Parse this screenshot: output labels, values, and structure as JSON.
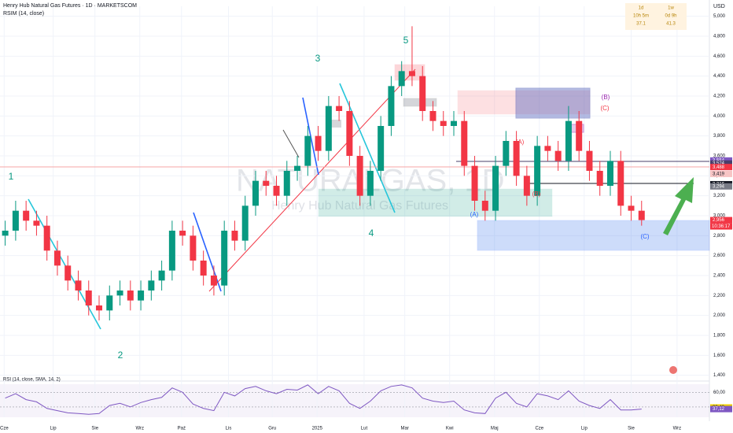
{
  "chart_data": {
    "type": "candlestick",
    "title": "Henry Hub Natural Gas Futures · 1D · MARKETSCOM",
    "indicator_label": "RSIM (14, close)",
    "watermark": "NATURALGAS, 1D",
    "watermark_subtitle": "Henry Hub Natural Gas Futures",
    "currency": "USD",
    "up_color": "#089981",
    "down_color": "#f23645",
    "grid": true,
    "x": [
      0.5,
      1.5,
      2.5,
      3.5,
      4.5,
      5.5,
      6.5,
      7.5,
      8.5,
      9.5,
      10.5,
      11.5,
      12.5,
      13.5,
      14.5,
      15.5,
      16.5,
      17.5,
      18.5,
      19.5,
      20.5,
      21.5,
      22.5,
      23.5,
      24.5,
      25.5,
      26.5,
      27.5,
      28.5,
      29.5,
      30.5,
      31.5,
      32.5,
      33.5,
      34.5,
      35.5,
      36.5,
      37.5,
      38.5,
      39.5,
      40.5,
      41.5,
      42.5,
      43.5,
      44.5,
      45.5,
      46.5,
      47.5,
      48.5,
      49.5,
      50.5,
      51.5,
      52.5,
      53.5,
      54.5,
      55.5,
      56.5,
      57.5,
      58.5,
      59.5,
      60.5,
      61.5
    ],
    "open": [
      2800,
      2850,
      3050,
      2950,
      2900,
      2650,
      2500,
      2350,
      2250,
      2100,
      2050,
      2200,
      2250,
      2150,
      2250,
      2350,
      2450,
      2850,
      2800,
      2550,
      2400,
      2300,
      2850,
      2750,
      3100,
      3350,
      3300,
      3200,
      3450,
      3500,
      3800,
      3650,
      4100,
      4050,
      3600,
      3200,
      3450,
      3900,
      4300,
      4450,
      4400,
      4050,
      3950,
      3900,
      3950,
      3500,
      3150,
      3050,
      3500,
      3750,
      3400,
      3200,
      3700,
      3650,
      3550,
      3950,
      3650,
      3450,
      3300,
      3550,
      3100,
      3050
    ],
    "high": [
      2950,
      3150,
      3150,
      3050,
      3000,
      2750,
      2600,
      2450,
      2350,
      2200,
      2300,
      2350,
      2350,
      2350,
      2450,
      2550,
      2950,
      2950,
      2900,
      2650,
      2500,
      2950,
      2950,
      3200,
      3450,
      3450,
      3400,
      3550,
      3600,
      3900,
      3900,
      4200,
      4200,
      4150,
      3700,
      3550,
      4000,
      4400,
      4550,
      4900,
      4500,
      4150,
      4050,
      4050,
      4050,
      3600,
      3250,
      3600,
      3850,
      3850,
      3500,
      3800,
      3800,
      3750,
      4100,
      4050,
      3750,
      3550,
      3650,
      3650,
      3200,
      3150
    ],
    "low": [
      2700,
      2750,
      2850,
      2800,
      2550,
      2400,
      2250,
      2150,
      2000,
      1950,
      1950,
      2100,
      2050,
      2050,
      2150,
      2250,
      2350,
      2700,
      2450,
      2300,
      2200,
      2200,
      2650,
      2650,
      3000,
      3200,
      3100,
      3100,
      3350,
      3400,
      3550,
      3550,
      3950,
      3500,
      3100,
      3100,
      3350,
      3800,
      4200,
      4300,
      3950,
      3850,
      3800,
      3800,
      3400,
      3050,
      2950,
      2950,
      3400,
      3300,
      3100,
      3100,
      3550,
      3450,
      3450,
      3550,
      3350,
      3200,
      3200,
      3000,
      2950,
      2900
    ],
    "close": [
      2850,
      3050,
      2950,
      2900,
      2650,
      2500,
      2350,
      2250,
      2100,
      2050,
      2200,
      2250,
      2150,
      2250,
      2350,
      2450,
      2850,
      2800,
      2550,
      2400,
      2300,
      2850,
      2750,
      3100,
      3350,
      3300,
      3200,
      3450,
      3500,
      3800,
      3650,
      4100,
      4050,
      3600,
      3200,
      3450,
      3900,
      4300,
      4450,
      4400,
      4050,
      3950,
      3900,
      3950,
      3500,
      3150,
      3050,
      3500,
      3750,
      3400,
      3200,
      3700,
      3650,
      3550,
      3950,
      3650,
      3450,
      3300,
      3550,
      3100,
      3050,
      2956
    ],
    "xlim": [
      0,
      68
    ],
    "xticks": [
      {
        "value": 0.4,
        "label": "Cze"
      },
      {
        "value": 5.1,
        "label": "Lip"
      },
      {
        "value": 9.1,
        "label": "Sie"
      },
      {
        "value": 13.4,
        "label": "Wrz"
      },
      {
        "value": 17.4,
        "label": "Paź"
      },
      {
        "value": 21.9,
        "label": "Lis"
      },
      {
        "value": 26.1,
        "label": "Gru"
      },
      {
        "value": 30.4,
        "label": "2025"
      },
      {
        "value": 34.9,
        "label": "Lut"
      },
      {
        "value": 38.8,
        "label": "Mar"
      },
      {
        "value": 43.1,
        "label": "Kwi"
      },
      {
        "value": 47.4,
        "label": "Maj"
      },
      {
        "value": 51.7,
        "label": "Cze"
      },
      {
        "value": 56.0,
        "label": "Lip"
      },
      {
        "value": 60.5,
        "label": "Sie"
      },
      {
        "value": 64.9,
        "label": "Wrz"
      }
    ],
    "ylim": [
      1350,
      5100
    ],
    "yticks": [
      {
        "value": 1400,
        "label": "1,400"
      },
      {
        "value": 1600,
        "label": "1,600"
      },
      {
        "value": 1800,
        "label": "1,800"
      },
      {
        "value": 2000,
        "label": "2,000"
      },
      {
        "value": 2200,
        "label": "2,200"
      },
      {
        "value": 2400,
        "label": "2,400"
      },
      {
        "value": 2600,
        "label": "2,600"
      },
      {
        "value": 2800,
        "label": "2,800"
      },
      {
        "value": 3000,
        "label": "3,000"
      },
      {
        "value": 3200,
        "label": "3,200"
      },
      {
        "value": 3400,
        "label": "3,400"
      },
      {
        "value": 3600,
        "label": "3,600"
      },
      {
        "value": 3800,
        "label": "3,800"
      },
      {
        "value": 4000,
        "label": "4,000"
      },
      {
        "value": 4200,
        "label": "4,200"
      },
      {
        "value": 4400,
        "label": "4,400"
      },
      {
        "value": 4600,
        "label": "4,600"
      },
      {
        "value": 4800,
        "label": "4,800"
      },
      {
        "value": 5000,
        "label": "5,000"
      }
    ],
    "price_labels": [
      {
        "value": 3554,
        "label": "3,554",
        "color": "#7e57c2"
      },
      {
        "value": 3524,
        "label": "3,524",
        "color": "#4a3f6b"
      },
      {
        "value": 3488,
        "label": "3,488",
        "color": "#f23645"
      },
      {
        "value": 3419,
        "label": "3,419",
        "color": "#f7c5c5"
      },
      {
        "value": 3316,
        "label": "3,316",
        "color": "#131722"
      },
      {
        "value": 3294,
        "label": "3,294",
        "color": "#787b86"
      },
      {
        "value": 2956,
        "label": "2,956",
        "color": "#f23645"
      }
    ],
    "countdown": "10:36:17",
    "annotations": [
      {
        "text": "1",
        "color": "#089981"
      },
      {
        "text": "2",
        "color": "#089981"
      },
      {
        "text": "3",
        "color": "#089981"
      },
      {
        "text": "4",
        "color": "#089981"
      },
      {
        "text": "5",
        "color": "#089981"
      },
      {
        "text": "(A)",
        "color": "#2962ff"
      },
      {
        "text": "(B)",
        "color": "#f23645"
      },
      {
        "text": "(A)",
        "color": "#f23645"
      },
      {
        "text": "(B)",
        "color": "#9c27b0"
      },
      {
        "text": "(C)",
        "color": "#f23645"
      },
      {
        "text": "(C)",
        "color": "#2962ff"
      }
    ],
    "stats": [
      [
        "1d",
        "10h 5m",
        "37.1"
      ],
      [
        "1w",
        "0d 9h",
        "41.3"
      ]
    ],
    "rsi": {
      "label": "RSI (14, close, SMA, 14, 2)",
      "color": "#7e57c2",
      "values": [
        52,
        58,
        50,
        47,
        38,
        35,
        32,
        31,
        30,
        31,
        42,
        45,
        40,
        46,
        50,
        53,
        66,
        60,
        44,
        38,
        35,
        60,
        55,
        65,
        68,
        62,
        58,
        64,
        63,
        70,
        58,
        68,
        62,
        45,
        38,
        48,
        62,
        68,
        70,
        66,
        52,
        48,
        46,
        48,
        36,
        32,
        31,
        52,
        60,
        45,
        40,
        58,
        55,
        50,
        62,
        48,
        42,
        38,
        50,
        36,
        36,
        37.12
      ],
      "ylim": [
        26,
        71
      ],
      "yticks": [
        {
          "value": 60,
          "label": "60,00"
        },
        {
          "value": 40,
          "label": "40,00"
        }
      ],
      "last_labels": [
        {
          "value": 39.4,
          "label": "39,40",
          "color": "#f0d000"
        },
        {
          "value": 37.12,
          "label": "37,12",
          "color": "#7e57c2"
        }
      ]
    }
  }
}
